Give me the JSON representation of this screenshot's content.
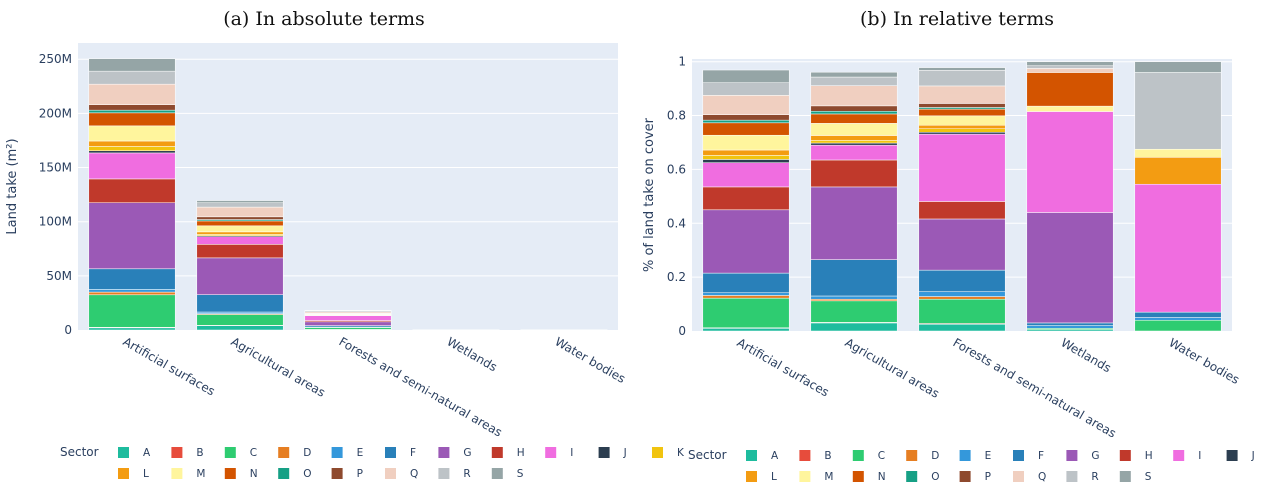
{
  "figure": {
    "panel_a_caption": "(a) In absolute terms",
    "panel_b_caption": "(b) In relative terms"
  },
  "sectors": [
    {
      "code": "A",
      "color": "#1ebc9e"
    },
    {
      "code": "B",
      "color": "#e74c3c"
    },
    {
      "code": "C",
      "color": "#2ecc71"
    },
    {
      "code": "D",
      "color": "#e67e22"
    },
    {
      "code": "E",
      "color": "#3498db"
    },
    {
      "code": "F",
      "color": "#2980b9"
    },
    {
      "code": "G",
      "color": "#9b59b6"
    },
    {
      "code": "H",
      "color": "#c0392b"
    },
    {
      "code": "I",
      "color": "#f06de0"
    },
    {
      "code": "J",
      "color": "#2c3e50"
    },
    {
      "code": "K",
      "color": "#f1c40f"
    },
    {
      "code": "L",
      "color": "#f39c12"
    },
    {
      "code": "M",
      "color": "#fff59d"
    },
    {
      "code": "N",
      "color": "#d35400"
    },
    {
      "code": "O",
      "color": "#16a085"
    },
    {
      "code": "P",
      "color": "#8e4a2e"
    },
    {
      "code": "Q",
      "color": "#f0cfc0"
    },
    {
      "code": "R",
      "color": "#bdc3c7"
    },
    {
      "code": "S",
      "color": "#95a5a6"
    }
  ],
  "legend": {
    "title": "Sector"
  },
  "chart_data": [
    {
      "type": "bar",
      "stacked": true,
      "title": "(a) In absolute terms",
      "ylabel": "Land take (m²)",
      "ylim": [
        0,
        265000000
      ],
      "yticks": [
        0,
        50000000,
        100000000,
        150000000,
        200000000,
        250000000
      ],
      "ytick_labels": [
        "0",
        "50M",
        "100M",
        "150M",
        "200M",
        "250M"
      ],
      "categories": [
        "Artificial surfaces",
        "Agricultural areas",
        "Forests and semi-natural areas",
        "Wetlands",
        "Water bodies"
      ],
      "series": [
        {
          "name": "A",
          "values": [
            2000000,
            4000000,
            500000,
            0,
            0
          ]
        },
        {
          "name": "B",
          "values": [
            500000,
            300000,
            50000,
            0,
            0
          ]
        },
        {
          "name": "C",
          "values": [
            30000000,
            10000000,
            1800000,
            0,
            0
          ]
        },
        {
          "name": "D",
          "values": [
            2500000,
            800000,
            100000,
            0,
            0
          ]
        },
        {
          "name": "E",
          "values": [
            2500000,
            1500000,
            300000,
            0,
            0
          ]
        },
        {
          "name": "F",
          "values": [
            19000000,
            16000000,
            1300000,
            0,
            0
          ]
        },
        {
          "name": "G",
          "values": [
            61000000,
            34000000,
            3500000,
            10000,
            0
          ]
        },
        {
          "name": "H",
          "values": [
            22000000,
            12500000,
            1200000,
            0,
            0
          ]
        },
        {
          "name": "I",
          "values": [
            24000000,
            7000000,
            4500000,
            10000,
            15000
          ]
        },
        {
          "name": "J",
          "values": [
            2000000,
            1000000,
            100000,
            0,
            0
          ]
        },
        {
          "name": "K",
          "values": [
            4000000,
            1200000,
            300000,
            0,
            0
          ]
        },
        {
          "name": "L",
          "values": [
            5000000,
            2300000,
            300000,
            0,
            1000
          ]
        },
        {
          "name": "M",
          "values": [
            14000000,
            5600000,
            600000,
            500,
            1000
          ]
        },
        {
          "name": "N",
          "values": [
            12000000,
            4500000,
            500000,
            3000,
            0
          ]
        },
        {
          "name": "O",
          "values": [
            2500000,
            1300000,
            100000,
            0,
            0
          ]
        },
        {
          "name": "P",
          "values": [
            5000000,
            2500000,
            400000,
            0,
            0
          ]
        },
        {
          "name": "Q",
          "values": [
            19000000,
            9000000,
            1200000,
            500,
            0
          ]
        },
        {
          "name": "R",
          "values": [
            12000000,
            4000000,
            1000000,
            500,
            8000
          ]
        },
        {
          "name": "S",
          "values": [
            11500000,
            2000000,
            400000,
            500,
            1000
          ]
        }
      ]
    },
    {
      "type": "bar",
      "stacked": true,
      "title": "(b) In relative terms",
      "ylabel": "% of land take on cover",
      "ylim": [
        0,
        1.01
      ],
      "yticks": [
        0,
        0.2,
        0.4,
        0.6,
        0.8,
        1
      ],
      "ytick_labels": [
        "0",
        "0.2",
        "0.4",
        "0.6",
        "0.8",
        "1"
      ],
      "categories": [
        "Artificial surfaces",
        "Agricultural areas",
        "Forests and semi-natural areas",
        "Wetlands",
        "Water bodies"
      ],
      "series": [
        {
          "name": "A",
          "values": [
            0.01,
            0.03,
            0.025,
            0.005,
            0.0
          ]
        },
        {
          "name": "B",
          "values": [
            0.002,
            0.002,
            0.003,
            0.0,
            0.0
          ]
        },
        {
          "name": "C",
          "values": [
            0.11,
            0.08,
            0.09,
            0.005,
            0.04
          ]
        },
        {
          "name": "D",
          "values": [
            0.01,
            0.006,
            0.01,
            0.0,
            0.0
          ]
        },
        {
          "name": "E",
          "values": [
            0.01,
            0.012,
            0.018,
            0.01,
            0.01
          ]
        },
        {
          "name": "F",
          "values": [
            0.073,
            0.135,
            0.08,
            0.01,
            0.02
          ]
        },
        {
          "name": "G",
          "values": [
            0.235,
            0.27,
            0.19,
            0.41,
            0.0
          ]
        },
        {
          "name": "H",
          "values": [
            0.085,
            0.1,
            0.065,
            0.0,
            0.0
          ]
        },
        {
          "name": "I",
          "values": [
            0.09,
            0.055,
            0.25,
            0.375,
            0.475
          ]
        },
        {
          "name": "J",
          "values": [
            0.012,
            0.008,
            0.007,
            0.0,
            0.0
          ]
        },
        {
          "name": "K",
          "values": [
            0.015,
            0.01,
            0.013,
            0.0,
            0.0
          ]
        },
        {
          "name": "L",
          "values": [
            0.02,
            0.018,
            0.013,
            0.0,
            0.1
          ]
        },
        {
          "name": "M",
          "values": [
            0.055,
            0.045,
            0.035,
            0.02,
            0.03
          ]
        },
        {
          "name": "N",
          "values": [
            0.046,
            0.035,
            0.025,
            0.125,
            0.0
          ]
        },
        {
          "name": "O",
          "values": [
            0.01,
            0.01,
            0.006,
            0.0,
            0.0
          ]
        },
        {
          "name": "P",
          "values": [
            0.02,
            0.02,
            0.015,
            0.0,
            0.0
          ]
        },
        {
          "name": "Q",
          "values": [
            0.072,
            0.075,
            0.065,
            0.015,
            0.0
          ]
        },
        {
          "name": "R",
          "values": [
            0.047,
            0.032,
            0.058,
            0.01,
            0.285
          ]
        },
        {
          "name": "S",
          "values": [
            0.047,
            0.018,
            0.01,
            0.015,
            0.04
          ]
        }
      ]
    }
  ]
}
